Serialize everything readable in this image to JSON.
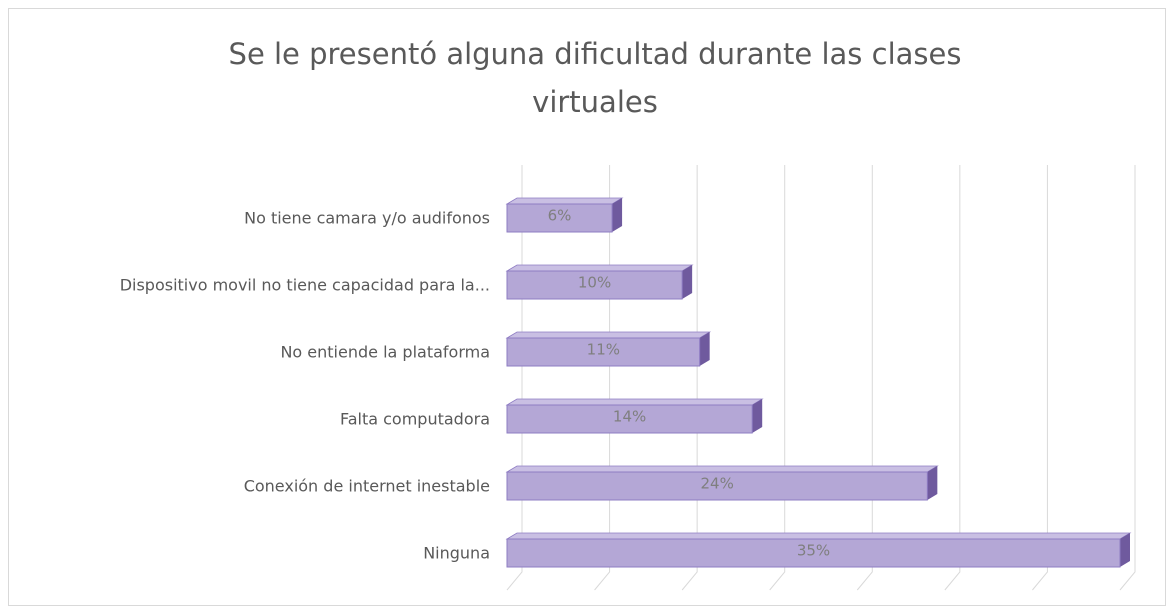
{
  "chart_data": {
    "type": "bar",
    "orientation": "horizontal",
    "title": "Se le presentó alguna dificultad durante las clases virtuales",
    "categories": [
      "No tiene camara y/o audifonos",
      "Dispositivo movil no tiene capacidad para la...",
      "No entiende la  plataforma",
      "Falta computadora",
      "Conexión de internet inestable",
      "Ninguna"
    ],
    "values": [
      6,
      10,
      11,
      14,
      24,
      35
    ],
    "value_labels": [
      "6%",
      "10%",
      "11%",
      "14%",
      "24%",
      "35%"
    ],
    "color": "#b4a7d6",
    "xlim": [
      0,
      35
    ],
    "xticks": [
      0,
      5,
      10,
      15,
      20,
      25,
      30,
      35
    ],
    "grid": true
  }
}
